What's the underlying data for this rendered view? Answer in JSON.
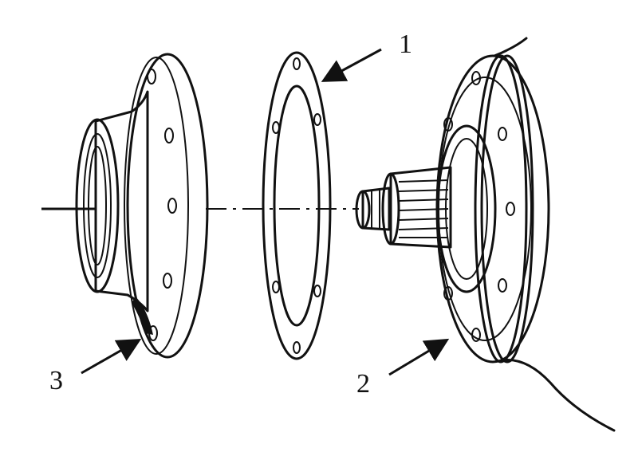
{
  "diagram": {
    "labels": {
      "part_1": "1",
      "part_2": "2",
      "part_3": "3"
    }
  },
  "colors": {
    "ink": "#111111",
    "background": "#ffffff"
  }
}
